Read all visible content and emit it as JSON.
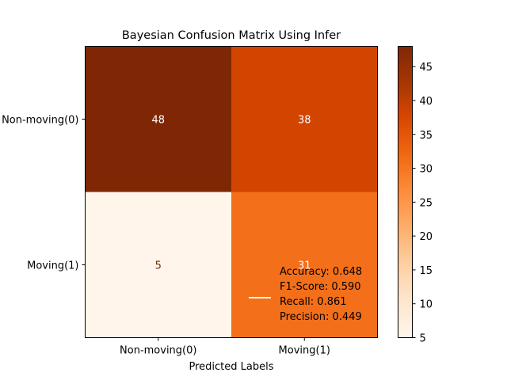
{
  "chart_data": {
    "type": "heatmap",
    "title": "Bayesian Confusion Matrix Using Infer",
    "xlabel": "Predicted Labels",
    "ylabel": "",
    "x_categories": [
      "Non-moving(0)",
      "Moving(1)"
    ],
    "y_categories": [
      "Non-moving(0)",
      "Moving(1)"
    ],
    "values": [
      [
        48,
        38
      ],
      [
        5,
        31
      ]
    ],
    "colormap": "Oranges",
    "colorbar": {
      "min": 5,
      "max": 48,
      "ticks": [
        5,
        10,
        15,
        20,
        25,
        30,
        35,
        40,
        45
      ]
    },
    "legend": {
      "placement": "lower-right",
      "line_color": "#ffffff",
      "entries": [
        "Accuracy: 0.648",
        "F1-Score: 0.590",
        "Recall: 0.861",
        "Precision: 0.449"
      ]
    }
  }
}
